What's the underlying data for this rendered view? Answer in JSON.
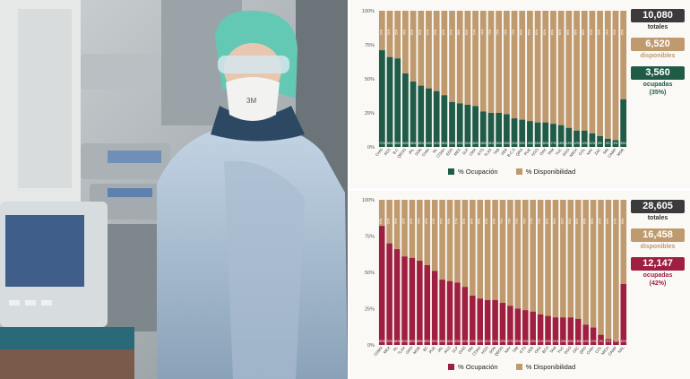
{
  "colors": {
    "disponibilidad": "#bf9a6e",
    "ocupacion_top": "#1f5b47",
    "ocupacion_bottom": "#9e1f3f",
    "total_box": "#3b3b3b"
  },
  "photo": {
    "subject": "healthcare worker in protective gear in an intensive care unit",
    "mask_text": "3M"
  },
  "top": {
    "totales": {
      "value": "10,080",
      "label": "totales"
    },
    "disponibles": {
      "value": "6,520",
      "label": "disponibles"
    },
    "ocupadas": {
      "value": "3,560",
      "label": "ocupadas",
      "pct": "(35%)"
    },
    "legend": {
      "ocupacion": "% Ocupación",
      "disponibilidad": "% Disponibilidad"
    }
  },
  "bottom": {
    "totales": {
      "value": "28,605",
      "label": "totales"
    },
    "disponibles": {
      "value": "16,458",
      "label": "disponibles"
    },
    "ocupadas": {
      "value": "12,147",
      "label": "ocupadas",
      "pct": "(42%)"
    },
    "legend": {
      "ocupacion": "% Ocupación",
      "disponibilidad": "% Disponibilidad"
    }
  },
  "chart_data": [
    {
      "type": "bar",
      "stacked": true,
      "ylim": [
        0,
        100
      ],
      "yticks": [
        "0%",
        "25%",
        "50%",
        "75%",
        "100%"
      ],
      "categories": [
        "CHIS",
        "AGS",
        "B.C",
        "QROO",
        "JAL",
        "SON",
        "CHIH",
        "NL",
        "COAH",
        "EDO",
        "MEX",
        "SLP",
        "CMX",
        "GTO",
        "TLAX",
        "TAB",
        "VER",
        "B.C.S",
        "QRO",
        "PUE",
        "HGO",
        "OAX",
        "TAM",
        "YUC",
        "DGO",
        "MICH",
        "COL",
        "NAY",
        "ZAC",
        "SIN",
        "CAMP",
        "MOR"
      ],
      "series": [
        {
          "name": "% Ocupación",
          "values": [
            71,
            66,
            65,
            54,
            48,
            45,
            43,
            41,
            38,
            33,
            32,
            31,
            30,
            26,
            25,
            25,
            24,
            21,
            20,
            19,
            18,
            18,
            17,
            16,
            14,
            12,
            12,
            10,
            8,
            6,
            5,
            35
          ]
        },
        {
          "name": "% Disponibilidad",
          "values": [
            29,
            34,
            35,
            46,
            52,
            55,
            57,
            59,
            62,
            67,
            68,
            69,
            70,
            74,
            75,
            75,
            76,
            79,
            80,
            81,
            82,
            82,
            83,
            84,
            86,
            88,
            88,
            90,
            92,
            94,
            95,
            65
          ]
        }
      ]
    },
    {
      "type": "bar",
      "stacked": true,
      "ylim": [
        0,
        100
      ],
      "yticks": [
        "0%",
        "25%",
        "50%",
        "75%",
        "100%"
      ],
      "categories": [
        "CDMX",
        "MEX",
        "NL",
        "TLAX",
        "GRO",
        "MOR",
        "BC",
        "PUE",
        "JAL",
        "AGS",
        "SLP",
        "CHIS",
        "SIN",
        "COAH",
        "HGO",
        "SON",
        "QROO",
        "NAY",
        "TAB",
        "GTO",
        "VER",
        "OAX",
        "BCS",
        "TAM",
        "YUC",
        "DGO",
        "ZAC",
        "QRO",
        "CHIH",
        "COL",
        "MICH",
        "CAMP",
        "NAL"
      ],
      "series": [
        {
          "name": "% Ocupación",
          "values": [
            82,
            70,
            66,
            61,
            60,
            58,
            55,
            51,
            45,
            44,
            43,
            40,
            34,
            32,
            31,
            31,
            29,
            27,
            25,
            24,
            23,
            21,
            20,
            19,
            19,
            19,
            18,
            14,
            12,
            7,
            4,
            3,
            42
          ]
        },
        {
          "name": "% Disponibilidad",
          "values": [
            18,
            30,
            34,
            39,
            40,
            42,
            45,
            49,
            55,
            56,
            57,
            60,
            66,
            68,
            69,
            69,
            71,
            73,
            75,
            76,
            77,
            79,
            80,
            81,
            81,
            81,
            82,
            86,
            88,
            93,
            96,
            97,
            58
          ]
        }
      ]
    }
  ]
}
